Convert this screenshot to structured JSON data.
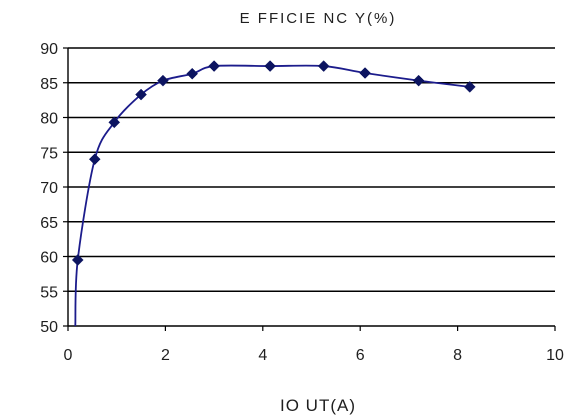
{
  "chart_data": {
    "type": "line",
    "title": "E FFICIE NC Y(%)",
    "xlabel": "IO UT(A)",
    "ylabel": "",
    "xlim": [
      0,
      10
    ],
    "ylim": [
      50,
      90
    ],
    "x_ticks": [
      0,
      2,
      4,
      6,
      8,
      10
    ],
    "y_ticks": [
      50,
      55,
      60,
      65,
      70,
      75,
      80,
      85,
      90
    ],
    "x_tick_labels": [
      "0",
      "2",
      "4",
      "6",
      "8",
      "10"
    ],
    "y_tick_labels": [
      "50",
      "55",
      "60",
      "65",
      "70",
      "75",
      "80",
      "85",
      "90"
    ],
    "grid": "horizontal",
    "legend": "none",
    "colors": {
      "line": "#1c1c8c",
      "marker": "#0c1460",
      "grid": "#000000",
      "axis": "#000000",
      "text": "#1f1f1f"
    },
    "series": [
      {
        "x": [
          0.2,
          0.55,
          0.95,
          1.5,
          1.95,
          2.55,
          3.0,
          4.15,
          5.25,
          6.1,
          7.2,
          8.25
        ],
        "y": [
          59.5,
          74.0,
          79.3,
          83.3,
          85.3,
          86.3,
          87.4,
          87.4,
          87.4,
          86.4,
          85.3,
          84.4
        ]
      }
    ],
    "curve_start": {
      "x": 0.15,
      "y": 50.0
    }
  }
}
